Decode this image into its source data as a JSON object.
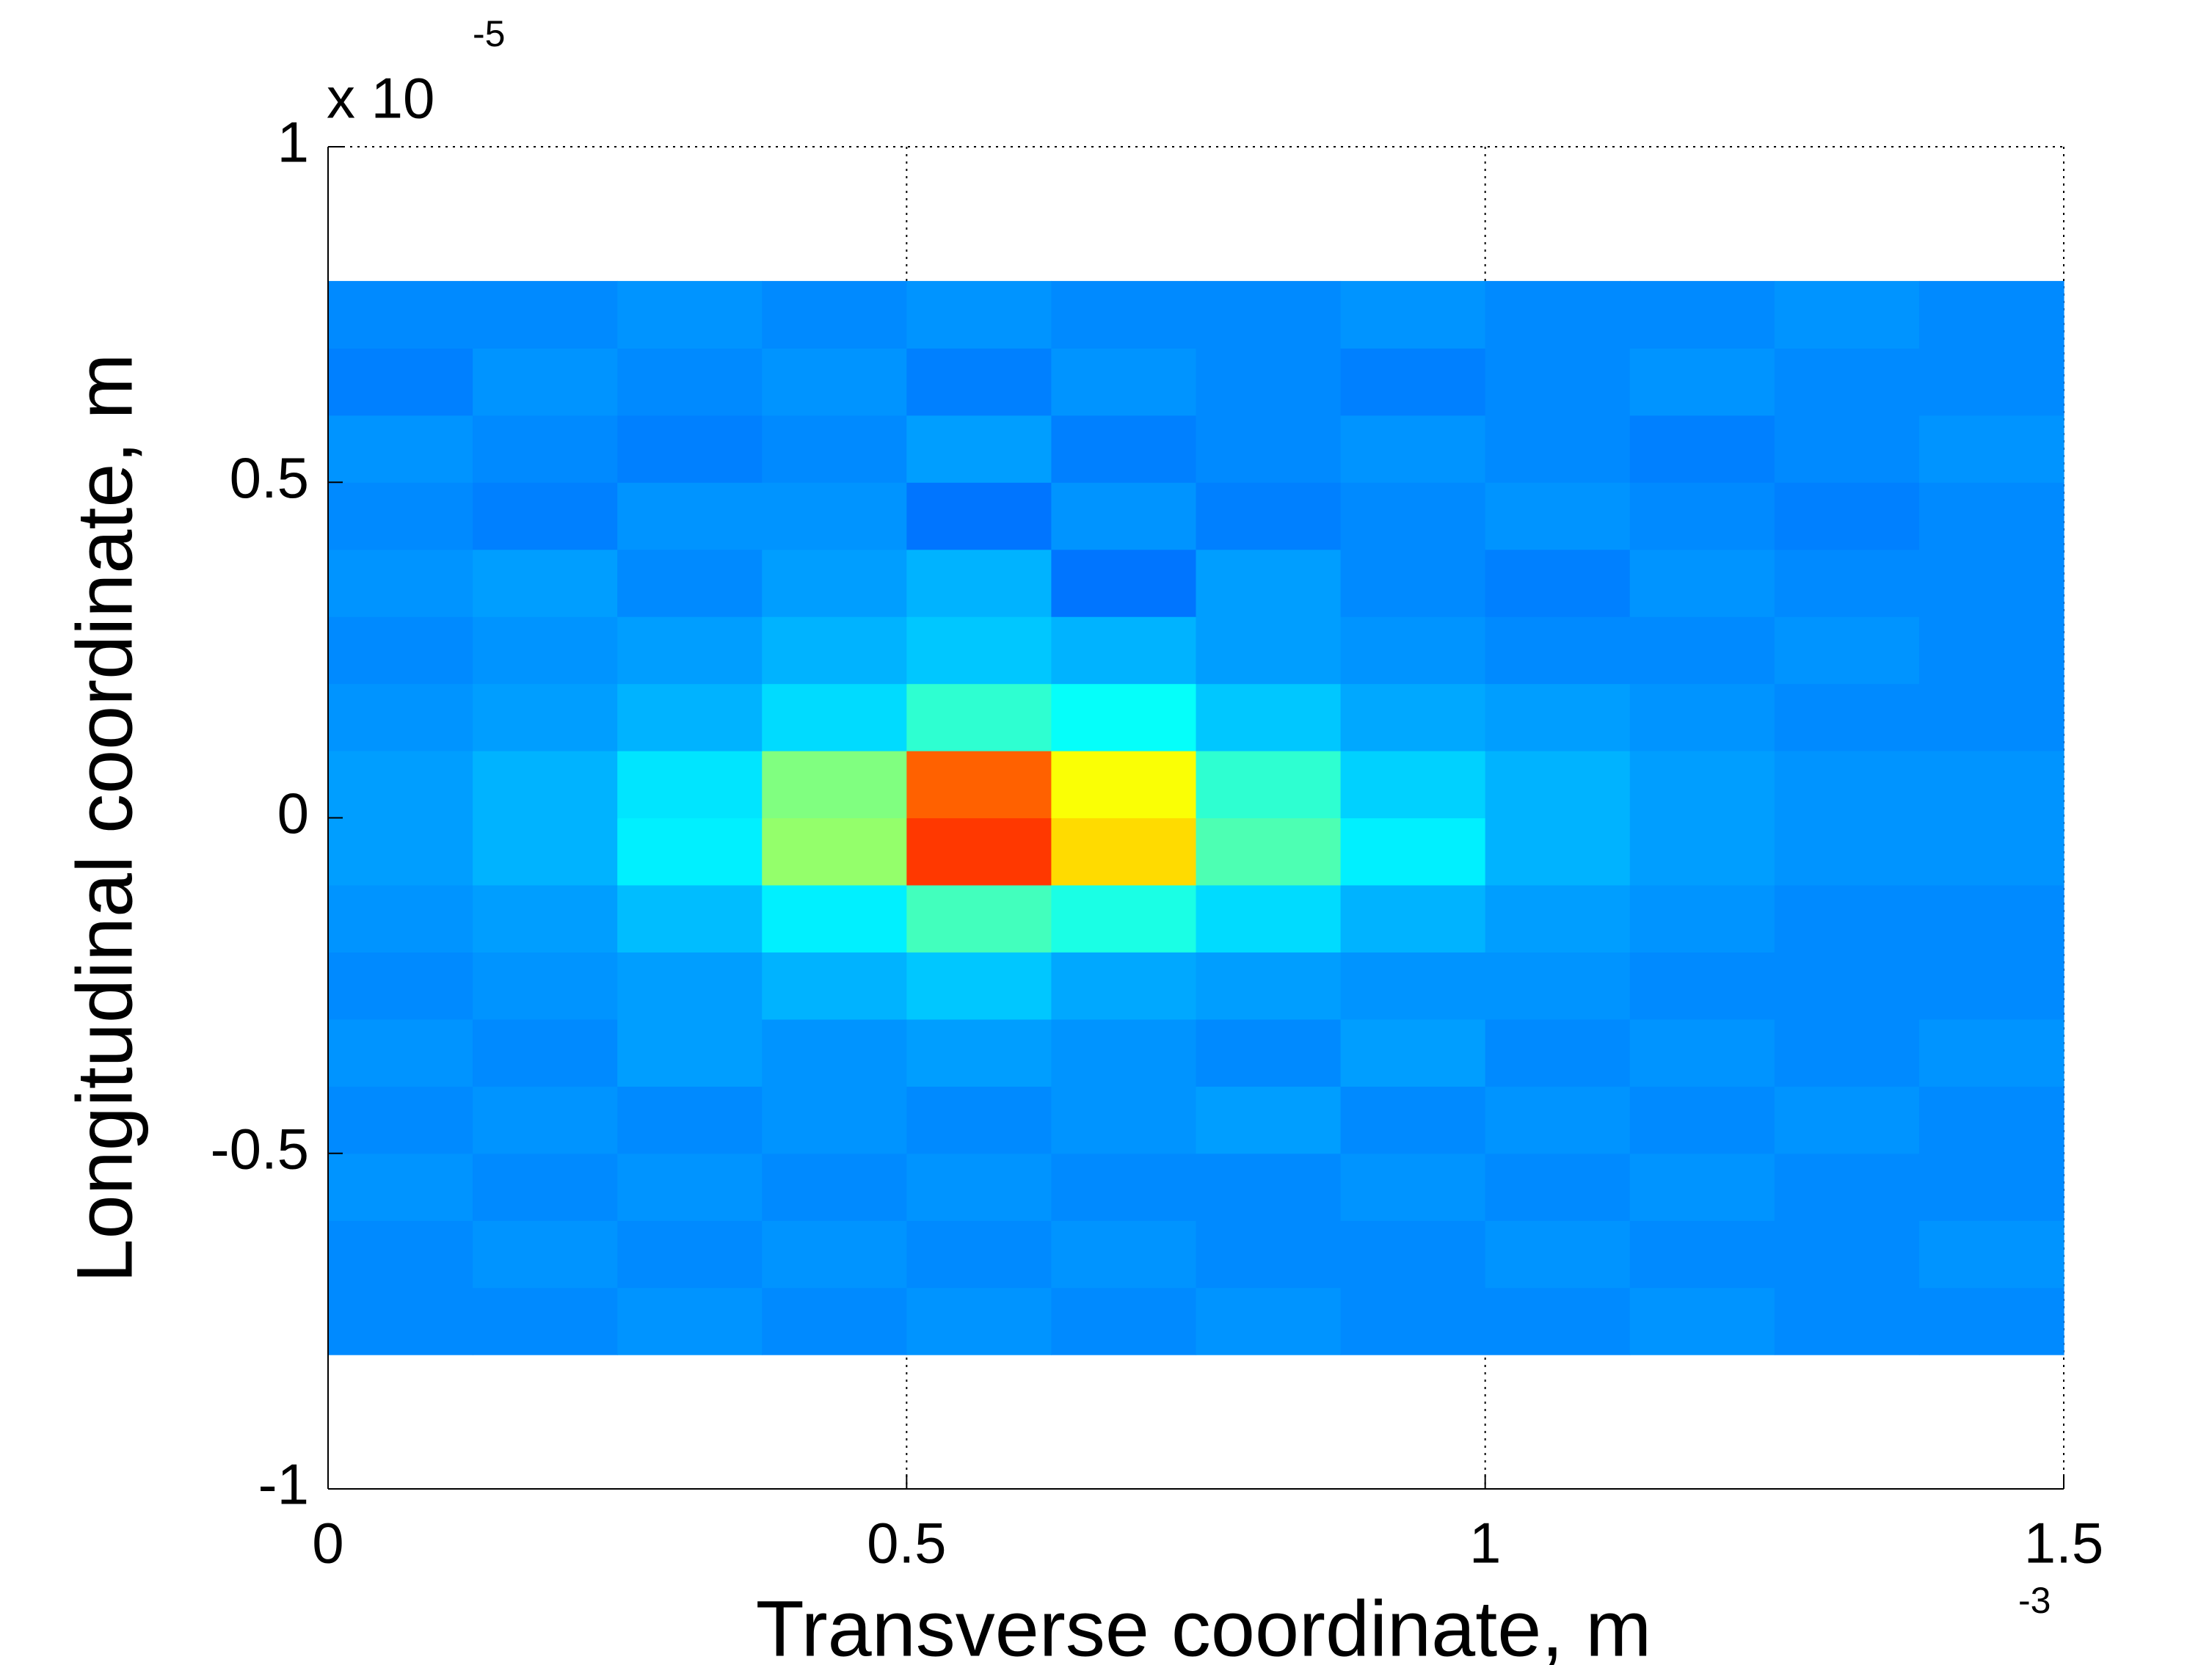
{
  "chart_data": {
    "type": "heatmap",
    "xlabel": "Transverse coordinate, m",
    "ylabel": "Longitudinal coordinate, m",
    "x_multiplier": {
      "exponent": "-3"
    },
    "y_multiplier": {
      "base": "x 10",
      "exponent": "-5"
    },
    "colormap": "jet",
    "grid": true,
    "xlim": [
      0,
      1.5
    ],
    "xticks": [
      0,
      0.5,
      1,
      1.5
    ],
    "ylim": [
      -1,
      1
    ],
    "yticks": [
      -1,
      -0.5,
      0,
      0.5,
      1
    ],
    "zlim": [
      0,
      1
    ],
    "x_edges": [
      0,
      0.125,
      0.25,
      0.375,
      0.5,
      0.625,
      0.75,
      0.875,
      1,
      1.125,
      1.25,
      1.375,
      1.5
    ],
    "y_edges": [
      -0.8,
      -0.7,
      -0.6,
      -0.5,
      -0.4,
      -0.3,
      -0.2,
      -0.1,
      0,
      0.1,
      0.2,
      0.3,
      0.4,
      0.5,
      0.6,
      0.7,
      0.8
    ],
    "z": [
      [
        0.26,
        0.26,
        0.27,
        0.26,
        0.27,
        0.26,
        0.27,
        0.26,
        0.26,
        0.27,
        0.26,
        0.26
      ],
      [
        0.26,
        0.27,
        0.26,
        0.27,
        0.26,
        0.27,
        0.26,
        0.26,
        0.27,
        0.26,
        0.26,
        0.27
      ],
      [
        0.27,
        0.26,
        0.27,
        0.26,
        0.27,
        0.26,
        0.26,
        0.27,
        0.26,
        0.27,
        0.26,
        0.26
      ],
      [
        0.26,
        0.27,
        0.26,
        0.27,
        0.26,
        0.27,
        0.28,
        0.26,
        0.27,
        0.26,
        0.27,
        0.26
      ],
      [
        0.27,
        0.26,
        0.28,
        0.27,
        0.28,
        0.27,
        0.26,
        0.28,
        0.26,
        0.27,
        0.26,
        0.27
      ],
      [
        0.26,
        0.27,
        0.28,
        0.3,
        0.32,
        0.29,
        0.28,
        0.27,
        0.27,
        0.26,
        0.26,
        0.26
      ],
      [
        0.27,
        0.28,
        0.31,
        0.36,
        0.44,
        0.4,
        0.34,
        0.3,
        0.28,
        0.27,
        0.26,
        0.26
      ],
      [
        0.28,
        0.3,
        0.36,
        0.52,
        0.82,
        0.66,
        0.45,
        0.36,
        0.3,
        0.28,
        0.27,
        0.27
      ],
      [
        0.28,
        0.3,
        0.35,
        0.5,
        0.78,
        0.62,
        0.42,
        0.33,
        0.3,
        0.28,
        0.27,
        0.27
      ],
      [
        0.27,
        0.28,
        0.3,
        0.34,
        0.42,
        0.38,
        0.32,
        0.29,
        0.28,
        0.27,
        0.26,
        0.26
      ],
      [
        0.26,
        0.27,
        0.28,
        0.3,
        0.32,
        0.3,
        0.28,
        0.27,
        0.26,
        0.26,
        0.27,
        0.26
      ],
      [
        0.27,
        0.28,
        0.26,
        0.28,
        0.3,
        0.24,
        0.28,
        0.26,
        0.25,
        0.27,
        0.26,
        0.26
      ],
      [
        0.26,
        0.25,
        0.27,
        0.27,
        0.24,
        0.27,
        0.25,
        0.26,
        0.27,
        0.26,
        0.25,
        0.26
      ],
      [
        0.27,
        0.26,
        0.25,
        0.26,
        0.28,
        0.25,
        0.26,
        0.27,
        0.26,
        0.25,
        0.26,
        0.27
      ],
      [
        0.25,
        0.27,
        0.26,
        0.27,
        0.25,
        0.27,
        0.26,
        0.25,
        0.26,
        0.27,
        0.26,
        0.26
      ],
      [
        0.26,
        0.26,
        0.27,
        0.26,
        0.27,
        0.26,
        0.26,
        0.27,
        0.26,
        0.26,
        0.27,
        0.26
      ]
    ]
  }
}
